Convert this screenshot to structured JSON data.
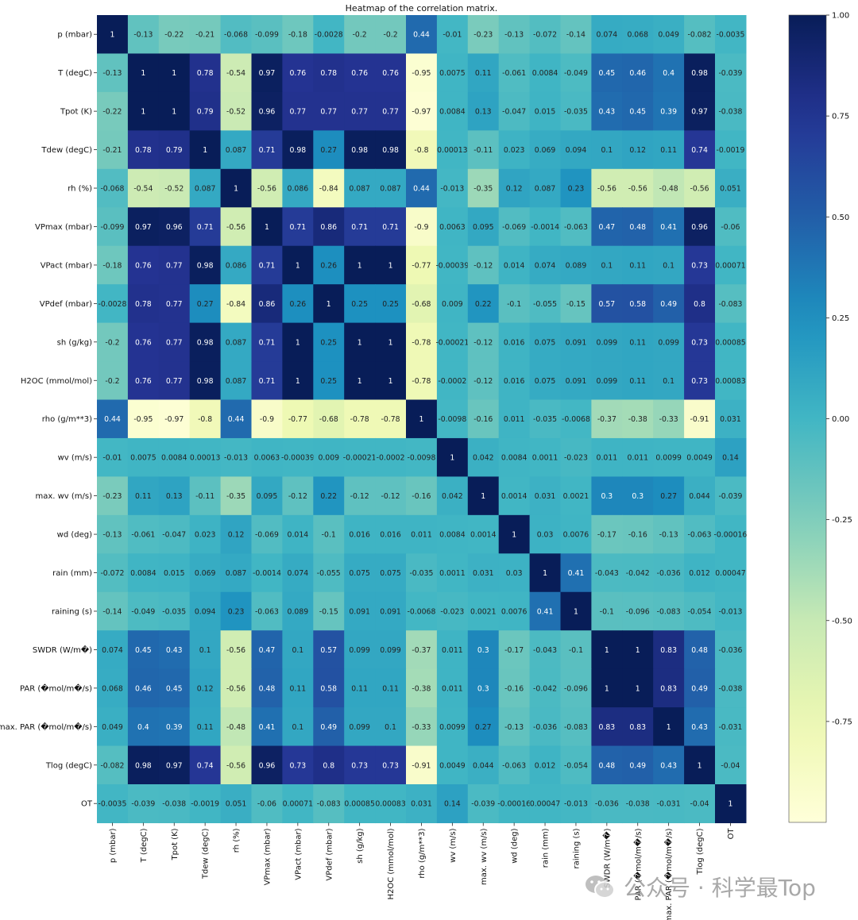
{
  "chart_data": {
    "type": "heatmap",
    "title": "Heatmap of the correlation matrix.",
    "colormap": "YlGnBu",
    "vmin": -1.0,
    "vmax": 1.0,
    "colorbar_ticks": [
      {
        "value": 1.0,
        "label": "1.00"
      },
      {
        "value": 0.75,
        "label": "0.75"
      },
      {
        "value": 0.5,
        "label": "0.50"
      },
      {
        "value": 0.25,
        "label": "0.25"
      },
      {
        "value": 0.0,
        "label": "0.00"
      },
      {
        "value": -0.25,
        "label": "-0.25"
      },
      {
        "value": -0.5,
        "label": "-0.50"
      },
      {
        "value": -0.75,
        "label": "-0.75"
      }
    ],
    "labels": [
      "p (mbar)",
      "T (degC)",
      "Tpot (K)",
      "Tdew (degC)",
      "rh (%)",
      "VPmax (mbar)",
      "VPact (mbar)",
      "VPdef (mbar)",
      "sh (g/kg)",
      "H2OC (mmol/mol)",
      "rho (g/m**3)",
      "wv (m/s)",
      "max. wv (m/s)",
      "wd (deg)",
      "rain (mm)",
      "raining (s)",
      "SWDR (W/m�)",
      "PAR (�mol/m�/s)",
      "max. PAR (�mol/m�/s)",
      "Tlog (degC)",
      "OT"
    ],
    "matrix_labels": [
      [
        "1",
        "-0.13",
        "-0.22",
        "-0.21",
        "-0.068",
        "-0.099",
        "-0.18",
        "-0.0028",
        "-0.2",
        "-0.2",
        "0.44",
        "-0.01",
        "-0.23",
        "-0.13",
        "-0.072",
        "-0.14",
        "0.074",
        "0.068",
        "0.049",
        "-0.082",
        "-0.0035"
      ],
      [
        "-0.13",
        "1",
        "1",
        "0.78",
        "-0.54",
        "0.97",
        "0.76",
        "0.78",
        "0.76",
        "0.76",
        "-0.95",
        "0.0075",
        "0.11",
        "-0.061",
        "0.0084",
        "-0.049",
        "0.45",
        "0.46",
        "0.4",
        "0.98",
        "-0.039"
      ],
      [
        "-0.22",
        "1",
        "1",
        "0.79",
        "-0.52",
        "0.96",
        "0.77",
        "0.77",
        "0.77",
        "0.77",
        "-0.97",
        "0.0084",
        "0.13",
        "-0.047",
        "0.015",
        "-0.035",
        "0.43",
        "0.45",
        "0.39",
        "0.97",
        "-0.038"
      ],
      [
        "-0.21",
        "0.78",
        "0.79",
        "1",
        "0.087",
        "0.71",
        "0.98",
        "0.27",
        "0.98",
        "0.98",
        "-0.8",
        "0.00013",
        "-0.11",
        "0.023",
        "0.069",
        "0.094",
        "0.1",
        "0.12",
        "0.11",
        "0.74",
        "-0.0019"
      ],
      [
        "-0.068",
        "-0.54",
        "-0.52",
        "0.087",
        "1",
        "-0.56",
        "0.086",
        "-0.84",
        "0.087",
        "0.087",
        "0.44",
        "-0.013",
        "-0.35",
        "0.12",
        "0.087",
        "0.23",
        "-0.56",
        "-0.56",
        "-0.48",
        "-0.56",
        "0.051"
      ],
      [
        "-0.099",
        "0.97",
        "0.96",
        "0.71",
        "-0.56",
        "1",
        "0.71",
        "0.86",
        "0.71",
        "0.71",
        "-0.9",
        "0.0063",
        "0.095",
        "-0.069",
        "-0.0014",
        "-0.063",
        "0.47",
        "0.48",
        "0.41",
        "0.96",
        "-0.06"
      ],
      [
        "-0.18",
        "0.76",
        "0.77",
        "0.98",
        "0.086",
        "0.71",
        "1",
        "0.26",
        "1",
        "1",
        "-0.77",
        "-0.00039",
        "-0.12",
        "0.014",
        "0.074",
        "0.089",
        "0.1",
        "0.11",
        "0.1",
        "0.73",
        "0.00071"
      ],
      [
        "-0.0028",
        "0.78",
        "0.77",
        "0.27",
        "-0.84",
        "0.86",
        "0.26",
        "1",
        "0.25",
        "0.25",
        "-0.68",
        "0.009",
        "0.22",
        "-0.1",
        "-0.055",
        "-0.15",
        "0.57",
        "0.58",
        "0.49",
        "0.8",
        "-0.083"
      ],
      [
        "-0.2",
        "0.76",
        "0.77",
        "0.98",
        "0.087",
        "0.71",
        "1",
        "0.25",
        "1",
        "1",
        "-0.78",
        "-0.00021",
        "-0.12",
        "0.016",
        "0.075",
        "0.091",
        "0.099",
        "0.11",
        "0.099",
        "0.73",
        "0.00085"
      ],
      [
        "-0.2",
        "0.76",
        "0.77",
        "0.98",
        "0.087",
        "0.71",
        "1",
        "0.25",
        "1",
        "1",
        "-0.78",
        "-0.0002",
        "-0.12",
        "0.016",
        "0.075",
        "0.091",
        "0.099",
        "0.11",
        "0.1",
        "0.73",
        "0.00083"
      ],
      [
        "0.44",
        "-0.95",
        "-0.97",
        "-0.8",
        "0.44",
        "-0.9",
        "-0.77",
        "-0.68",
        "-0.78",
        "-0.78",
        "1",
        "-0.0098",
        "-0.16",
        "0.011",
        "-0.035",
        "-0.0068",
        "-0.37",
        "-0.38",
        "-0.33",
        "-0.91",
        "0.031"
      ],
      [
        "-0.01",
        "0.0075",
        "0.0084",
        "0.00013",
        "-0.013",
        "0.0063",
        "-0.00039",
        "0.009",
        "-0.00021",
        "-0.0002",
        "-0.0098",
        "1",
        "0.042",
        "0.0084",
        "0.0011",
        "-0.023",
        "0.011",
        "0.011",
        "0.0099",
        "0.0049",
        "0.14"
      ],
      [
        "-0.23",
        "0.11",
        "0.13",
        "-0.11",
        "-0.35",
        "0.095",
        "-0.12",
        "0.22",
        "-0.12",
        "-0.12",
        "-0.16",
        "0.042",
        "1",
        "0.0014",
        "0.031",
        "0.0021",
        "0.3",
        "0.3",
        "0.27",
        "0.044",
        "-0.039"
      ],
      [
        "-0.13",
        "-0.061",
        "-0.047",
        "0.023",
        "0.12",
        "-0.069",
        "0.014",
        "-0.1",
        "0.016",
        "0.016",
        "0.011",
        "0.0084",
        "0.0014",
        "1",
        "0.03",
        "0.0076",
        "-0.17",
        "-0.16",
        "-0.13",
        "-0.063",
        "-0.00016"
      ],
      [
        "-0.072",
        "0.0084",
        "0.015",
        "0.069",
        "0.087",
        "-0.0014",
        "0.074",
        "-0.055",
        "0.075",
        "0.075",
        "-0.035",
        "0.0011",
        "0.031",
        "0.03",
        "1",
        "0.41",
        "-0.043",
        "-0.042",
        "-0.036",
        "0.012",
        "0.00047"
      ],
      [
        "-0.14",
        "-0.049",
        "-0.035",
        "0.094",
        "0.23",
        "-0.063",
        "0.089",
        "-0.15",
        "0.091",
        "0.091",
        "-0.0068",
        "-0.023",
        "0.0021",
        "0.0076",
        "0.41",
        "1",
        "-0.1",
        "-0.096",
        "-0.083",
        "-0.054",
        "-0.013"
      ],
      [
        "0.074",
        "0.45",
        "0.43",
        "0.1",
        "-0.56",
        "0.47",
        "0.1",
        "0.57",
        "0.099",
        "0.099",
        "-0.37",
        "0.011",
        "0.3",
        "-0.17",
        "-0.043",
        "-0.1",
        "1",
        "1",
        "0.83",
        "0.48",
        "-0.036"
      ],
      [
        "0.068",
        "0.46",
        "0.45",
        "0.12",
        "-0.56",
        "0.48",
        "0.11",
        "0.58",
        "0.11",
        "0.11",
        "-0.38",
        "0.011",
        "0.3",
        "-0.16",
        "-0.042",
        "-0.096",
        "1",
        "1",
        "0.83",
        "0.49",
        "-0.038"
      ],
      [
        "0.049",
        "0.4",
        "0.39",
        "0.11",
        "-0.48",
        "0.41",
        "0.1",
        "0.49",
        "0.099",
        "0.1",
        "-0.33",
        "0.0099",
        "0.27",
        "-0.13",
        "-0.036",
        "-0.083",
        "0.83",
        "0.83",
        "1",
        "0.43",
        "-0.031"
      ],
      [
        "-0.082",
        "0.98",
        "0.97",
        "0.74",
        "-0.56",
        "0.96",
        "0.73",
        "0.8",
        "0.73",
        "0.73",
        "-0.91",
        "0.0049",
        "0.044",
        "-0.063",
        "0.012",
        "-0.054",
        "0.48",
        "0.49",
        "0.43",
        "1",
        "-0.04"
      ],
      [
        "-0.0035",
        "-0.039",
        "-0.038",
        "-0.0019",
        "0.051",
        "-0.06",
        "0.00071",
        "-0.083",
        "0.00085",
        "0.00083",
        "0.031",
        "0.14",
        "-0.039",
        "-0.00016",
        "0.00047",
        "-0.013",
        "-0.036",
        "-0.038",
        "-0.031",
        "-0.04",
        "1"
      ]
    ]
  },
  "watermark": {
    "text": "公众号 · 科学最Top",
    "icon": "wechat-icon"
  }
}
